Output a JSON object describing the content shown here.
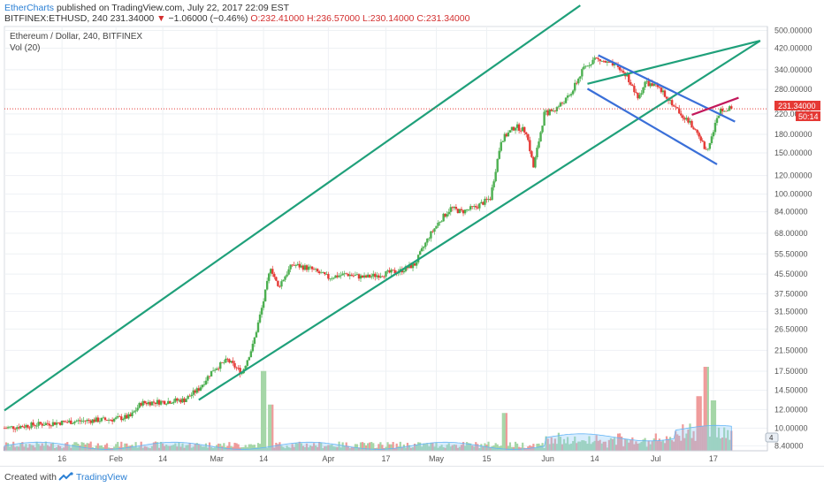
{
  "header": {
    "author": "EtherCharts",
    "published": " published on TradingView.com, July 22, 2017 22:09 EST",
    "symbol": "BITFINEX:ETHUSD, 240 ",
    "last": "231.34000",
    "arrow": " ▼ ",
    "change": "−1.06000 (−0.46%)",
    "ohlc": " O:232.41000 H:236.57000 L:230.14000 C:231.34000"
  },
  "footer": {
    "created": "Created with",
    "brand": "TradingView"
  },
  "chart_data": {
    "type": "candlestick",
    "title": "Ethereum / Dollar, 240, BITFINEX",
    "indicator": "Vol (20)",
    "scale": "log",
    "ylim": [
      8.0,
      520.0
    ],
    "x_ticks": [
      {
        "label": "16",
        "day": 16
      },
      {
        "label": "Feb",
        "day": 31
      },
      {
        "label": "14",
        "day": 44
      },
      {
        "label": "Mar",
        "day": 59
      },
      {
        "label": "14",
        "day": 72
      },
      {
        "label": "Apr",
        "day": 90
      },
      {
        "label": "17",
        "day": 106
      },
      {
        "label": "May",
        "day": 120
      },
      {
        "label": "15",
        "day": 134
      },
      {
        "label": "Jun",
        "day": 151
      },
      {
        "label": "14",
        "day": 164
      },
      {
        "label": "Jul",
        "day": 181
      },
      {
        "label": "17",
        "day": 197
      }
    ],
    "y_ticks": [
      "500.00000",
      "420.00000",
      "340.00000",
      "280.00000",
      "220.00000",
      "180.00000",
      "150.00000",
      "120.00000",
      "100.00000",
      "84.00000",
      "68.00000",
      "55.50000",
      "45.50000",
      "37.50000",
      "31.50000",
      "26.50000",
      "21.50000",
      "17.50000",
      "14.50000",
      "12.00000",
      "10.00000",
      "8.40000"
    ],
    "last_price": {
      "label": "231.34000",
      "value": 231.34
    },
    "countdown": "50:14",
    "close_path": [
      [
        0,
        10.0
      ],
      [
        10,
        10.4
      ],
      [
        20,
        10.7
      ],
      [
        30,
        10.9
      ],
      [
        35,
        11.2
      ],
      [
        38,
        12.8
      ],
      [
        45,
        13.0
      ],
      [
        50,
        13.2
      ],
      [
        54,
        14.7
      ],
      [
        58,
        17.8
      ],
      [
        62,
        19.5
      ],
      [
        66,
        17.2
      ],
      [
        69,
        22.5
      ],
      [
        72,
        35.0
      ],
      [
        74,
        49.0
      ],
      [
        76,
        40.0
      ],
      [
        80,
        50.0
      ],
      [
        85,
        48.0
      ],
      [
        90,
        44.0
      ],
      [
        95,
        45.5
      ],
      [
        100,
        44.0
      ],
      [
        105,
        45.5
      ],
      [
        110,
        47.0
      ],
      [
        114,
        50.0
      ],
      [
        118,
        66.0
      ],
      [
        121,
        77.0
      ],
      [
        124,
        87.0
      ],
      [
        127,
        84.0
      ],
      [
        131,
        88.0
      ],
      [
        135,
        96.0
      ],
      [
        138,
        170.0
      ],
      [
        142,
        195.0
      ],
      [
        145,
        185.0
      ],
      [
        147,
        130.0
      ],
      [
        150,
        220.0
      ],
      [
        153,
        230.0
      ],
      [
        157,
        262.0
      ],
      [
        161,
        345.0
      ],
      [
        164,
        380.0
      ],
      [
        167,
        365.0
      ],
      [
        170,
        350.0
      ],
      [
        173,
        320.0
      ],
      [
        176,
        255.0
      ],
      [
        178,
        300.0
      ],
      [
        181,
        288.0
      ],
      [
        184,
        262.0
      ],
      [
        187,
        228.0
      ],
      [
        190,
        205.0
      ],
      [
        193,
        178.0
      ],
      [
        195,
        152.0
      ],
      [
        197,
        188.0
      ],
      [
        199,
        232.0
      ],
      [
        202,
        231.34
      ]
    ],
    "volume": {
      "spikes": [
        [
          72,
          0.95
        ],
        [
          74,
          0.55
        ],
        [
          139,
          0.45
        ],
        [
          193,
          0.65
        ],
        [
          195,
          1.0
        ],
        [
          197,
          0.6
        ]
      ]
    },
    "colors": {
      "up": "#4caf50",
      "down": "#e53935",
      "volume_up": "#a5d6a7",
      "volume_down": "#ef9a9a",
      "volume_ma": "#90caf9",
      "trend_green": "#1fa07a",
      "trend_blue": "#3a6fd8",
      "trend_pink": "#c2185b",
      "last_line": "#e53935"
    },
    "trendlines": [
      {
        "name": "upper-channel",
        "color": "green",
        "from": [
          0,
          11.9
        ],
        "to": [
          160,
          640.0
        ]
      },
      {
        "name": "lower-channel",
        "color": "green",
        "from": [
          54,
          13.2
        ],
        "to": [
          210,
          452.0
        ]
      },
      {
        "name": "channel-mid",
        "color": "green",
        "from": [
          162,
          296.0
        ],
        "to": [
          210,
          452.0
        ]
      },
      {
        "name": "falling-upper",
        "color": "blue",
        "from": [
          165,
          392.0
        ],
        "to": [
          203,
          204.0
        ]
      },
      {
        "name": "falling-lower",
        "color": "blue",
        "from": [
          162,
          282.0
        ],
        "to": [
          198,
          134.0
        ]
      },
      {
        "name": "pink",
        "color": "pink",
        "from": [
          191,
          218.0
        ],
        "to": [
          204,
          258.0
        ]
      }
    ]
  }
}
